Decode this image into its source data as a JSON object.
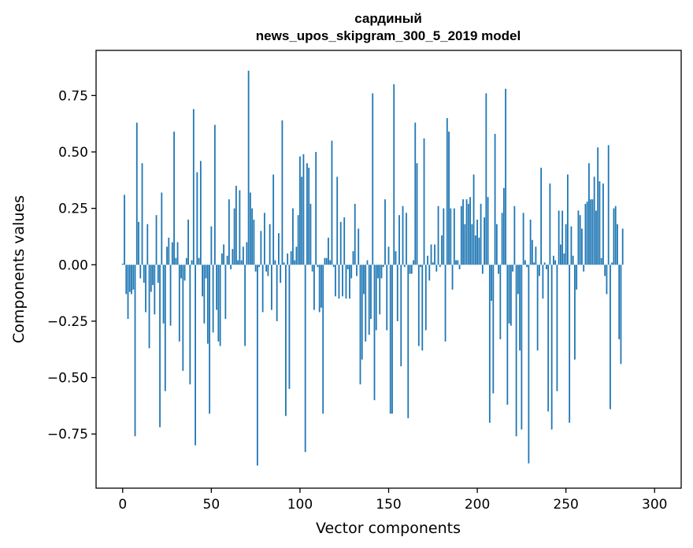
{
  "chart_data": {
    "type": "bar",
    "title": "сардиный",
    "subtitle": "news_upos_skipgram_300_5_2019 model",
    "xlabel": "Vector components",
    "ylabel": "Components values",
    "xlim": [
      -15,
      315
    ],
    "ylim": [
      -0.99,
      0.95
    ],
    "xticks": [
      0,
      50,
      100,
      150,
      200,
      250,
      300
    ],
    "xtick_labels": [
      "0",
      "50",
      "100",
      "150",
      "200",
      "250",
      "300"
    ],
    "yticks": [
      -0.75,
      -0.5,
      -0.25,
      0.0,
      0.25,
      0.5,
      0.75
    ],
    "ytick_labels": [
      "−0.75",
      "−0.50",
      "−0.25",
      "0.00",
      "0.25",
      "0.50",
      "0.75"
    ],
    "grid": false,
    "color": "#1f77b4",
    "values": [
      0.005,
      0.31,
      -0.13,
      -0.24,
      -0.12,
      -0.13,
      -0.11,
      -0.76,
      0.63,
      0.19,
      -0.06,
      0.45,
      -0.08,
      -0.21,
      0.18,
      -0.37,
      -0.12,
      -0.09,
      -0.22,
      0.22,
      -0.08,
      -0.72,
      0.32,
      -0.26,
      -0.56,
      0.08,
      0.12,
      -0.27,
      0.1,
      0.59,
      0.03,
      0.1,
      -0.34,
      -0.06,
      -0.47,
      -0.07,
      0.03,
      0.2,
      -0.53,
      0.02,
      0.69,
      -0.8,
      0.41,
      0.03,
      0.46,
      -0.14,
      -0.26,
      -0.06,
      -0.35,
      -0.66,
      0.17,
      -0.3,
      0.62,
      -0.2,
      -0.34,
      -0.36,
      0.05,
      0.09,
      -0.24,
      0.04,
      0.29,
      -0.02,
      0.07,
      0.25,
      0.35,
      0.02,
      0.33,
      0.02,
      0.08,
      -0.36,
      0.1,
      0.86,
      0.32,
      0.25,
      0.2,
      -0.03,
      -0.89,
      -0.01,
      0.15,
      -0.21,
      0.23,
      -0.03,
      -0.05,
      0.18,
      -0.2,
      0.4,
      0.02,
      -0.25,
      0.14,
      -0.08,
      0.64,
      0.01,
      -0.67,
      0.05,
      -0.55,
      0.06,
      0.25,
      0.02,
      0.08,
      0.22,
      0.48,
      0.39,
      0.49,
      -0.83,
      0.45,
      0.43,
      0.27,
      -0.03,
      -0.2,
      0.5,
      -0.01,
      -0.21,
      -0.19,
      -0.66,
      0.03,
      0.03,
      0.12,
      0.02,
      0.55,
      -0.01,
      -0.14,
      0.39,
      -0.15,
      0.19,
      -0.14,
      0.21,
      -0.15,
      -0.02,
      -0.15,
      -0.06,
      0.06,
      0.27,
      -0.05,
      0.16,
      -0.53,
      -0.42,
      -0.13,
      -0.34,
      0.02,
      -0.31,
      -0.24,
      0.76,
      -0.6,
      -0.29,
      -0.06,
      -0.22,
      -0.06,
      -0.01,
      0.29,
      -0.29,
      0.08,
      -0.66,
      -0.66,
      0.8,
      0.06,
      -0.25,
      0.22,
      -0.45,
      0.26,
      -0.01,
      0.23,
      -0.68,
      -0.04,
      -0.04,
      0.02,
      0.63,
      0.45,
      -0.36,
      -0.01,
      -0.38,
      0.56,
      -0.29,
      0.04,
      -0.07,
      0.09,
      0.01,
      0.09,
      -0.03,
      0.26,
      -0.01,
      0.13,
      0.25,
      -0.34,
      0.65,
      0.59,
      0.25,
      -0.11,
      0.25,
      0.02,
      0.02,
      -0.02,
      0.26,
      0.29,
      0.18,
      0.29,
      0.27,
      0.3,
      0.18,
      0.4,
      0.13,
      0.2,
      0.12,
      0.27,
      -0.04,
      0.21,
      0.76,
      0.3,
      -0.7,
      -0.16,
      -0.57,
      0.58,
      0.18,
      -0.04,
      -0.33,
      0.23,
      0.34,
      0.78,
      -0.62,
      -0.26,
      -0.27,
      -0.03,
      0.26,
      -0.76,
      -0.13,
      -0.38,
      -0.73,
      0.23,
      0.02,
      -0.01,
      -0.88,
      0.2,
      0.11,
      0.01,
      0.08,
      -0.38,
      -0.05,
      0.43,
      -0.15,
      0.01,
      -0.02,
      -0.65,
      0.36,
      -0.73,
      0.04,
      0.02,
      -0.56,
      0.24,
      0.09,
      0.24,
      0.05,
      0.18,
      0.4,
      -0.7,
      0.17,
      0.04,
      -0.42,
      -0.11,
      0.24,
      0.22,
      0.16,
      -0.03,
      0.27,
      0.28,
      0.45,
      0.29,
      0.29,
      0.39,
      0.24,
      0.52,
      0.37,
      0.03,
      0.36,
      -0.05,
      -0.13,
      0.53,
      -0.64,
      0.01,
      0.25,
      0.26,
      0.18,
      -0.33,
      -0.44,
      0.16
    ]
  }
}
